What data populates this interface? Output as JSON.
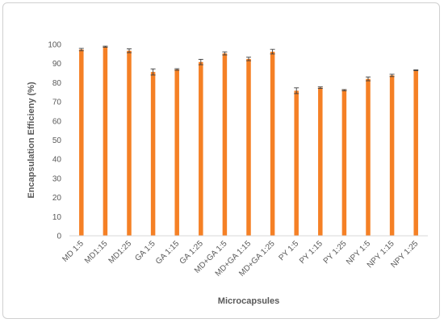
{
  "chart_data": {
    "type": "bar",
    "title": "",
    "xlabel": "Microcapsules",
    "ylabel": "Encapsulation Efficieny (%)",
    "ylim": [
      0,
      100
    ],
    "yticks": [
      0,
      10,
      20,
      30,
      40,
      50,
      60,
      70,
      80,
      90,
      100
    ],
    "grid": false,
    "legend": "none",
    "bar_color": "#F58025",
    "categories": [
      "MD 1:5",
      "MD1:15",
      "MD1:25",
      "GA 1:5",
      "GA 1:15",
      "GA 1:25",
      "MD+GA 1:5",
      "MD+GA 1:15",
      "MD+GA 1:25",
      "PY 1:5",
      "PY 1:15",
      "PY 1:25",
      "NPY 1:5",
      "NPY 1:15",
      "NPY 1:25"
    ],
    "values": [
      97.3,
      98.8,
      96.7,
      85.6,
      86.9,
      90.8,
      95.3,
      92.4,
      96.2,
      75.8,
      77.4,
      76.1,
      82.0,
      83.8,
      86.5
    ],
    "errors": [
      0.6,
      0.3,
      1.0,
      1.6,
      0.4,
      1.4,
      0.8,
      0.9,
      1.2,
      1.5,
      0.4,
      0.3,
      1.0,
      0.6,
      0.2
    ]
  }
}
